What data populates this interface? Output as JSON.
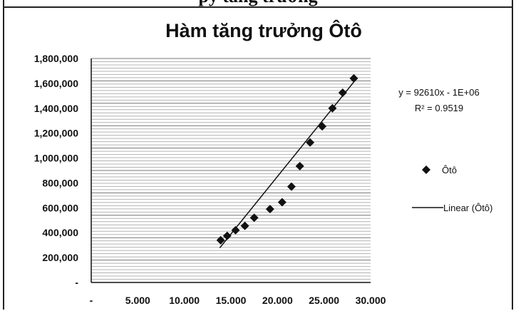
{
  "header_fragment": "py tăng trưởng",
  "chart_data": {
    "type": "scatter",
    "title": "Hàm tăng trưởng Ôtô",
    "xlabel": "",
    "ylabel": "",
    "x_ticks": [
      "-",
      "5.000",
      "10.000",
      "15.000",
      "20.000",
      "25.000",
      "30.000"
    ],
    "y_ticks": [
      "-",
      "200,000",
      "400,000",
      "600,000",
      "800,000",
      "1,000,000",
      "1,200,000",
      "1,400,000",
      "1,600,000",
      "1,800,000"
    ],
    "xlim": [
      0,
      30000
    ],
    "ylim": [
      0,
      1800000
    ],
    "grid": true,
    "legend_position": "right",
    "series": [
      {
        "name": "Ôtô",
        "marker": "diamond",
        "color": "#111111",
        "x": [
          13900,
          14600,
          15500,
          16500,
          17500,
          19200,
          20500,
          21500,
          22400,
          23500,
          24800,
          25900,
          27000,
          28200
        ],
        "y": [
          340000,
          375000,
          420000,
          455000,
          520000,
          590000,
          645000,
          770000,
          935000,
          1125000,
          1255000,
          1400000,
          1525000,
          1640000
        ]
      },
      {
        "name": "Linear (Ôtô)",
        "type": "line",
        "color": "#111111",
        "slope": 92610,
        "intercept": -1000000,
        "x_range": [
          13800,
          28300
        ]
      }
    ],
    "annotations": {
      "equation": "y = 92610x - 1E+06",
      "r_squared": "R² = 0.9519"
    }
  }
}
